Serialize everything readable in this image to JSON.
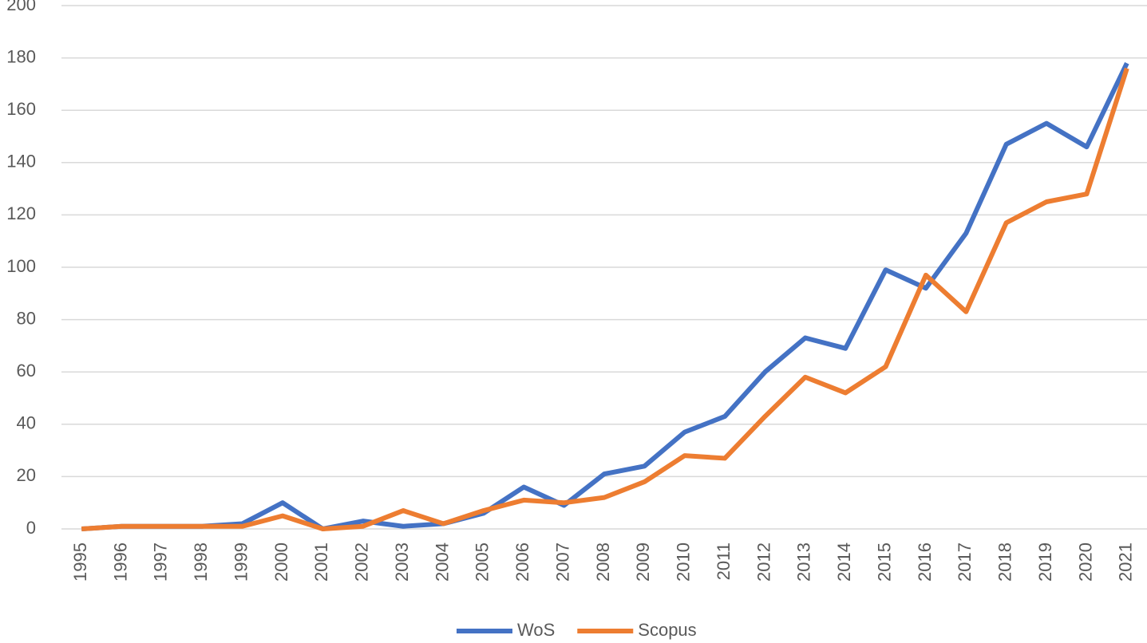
{
  "chart_data": {
    "type": "line",
    "categories": [
      "1995",
      "1996",
      "1997",
      "1998",
      "1999",
      "2000",
      "2001",
      "2002",
      "2003",
      "2004",
      "2005",
      "2006",
      "2007",
      "2008",
      "2009",
      "2010",
      "2011",
      "2012",
      "2013",
      "2014",
      "2015",
      "2016",
      "2017",
      "2018",
      "2019",
      "2020",
      "2021"
    ],
    "series": [
      {
        "name": "WoS",
        "color": "#4472c4",
        "values": [
          0,
          1,
          1,
          1,
          2,
          10,
          0,
          3,
          1,
          2,
          6,
          16,
          9,
          21,
          24,
          37,
          43,
          60,
          73,
          69,
          99,
          92,
          113,
          147,
          155,
          146,
          178
        ]
      },
      {
        "name": "Scopus",
        "color": "#ed7d31",
        "values": [
          0,
          1,
          1,
          1,
          1,
          5,
          0,
          1,
          7,
          2,
          7,
          11,
          10,
          12,
          18,
          28,
          27,
          43,
          58,
          52,
          62,
          97,
          83,
          117,
          125,
          128,
          176
        ]
      }
    ],
    "ylim": [
      0,
      200
    ],
    "yticks": [
      0,
      20,
      40,
      60,
      80,
      100,
      120,
      140,
      160,
      180,
      200
    ],
    "grid": true,
    "legend": "bottom"
  }
}
